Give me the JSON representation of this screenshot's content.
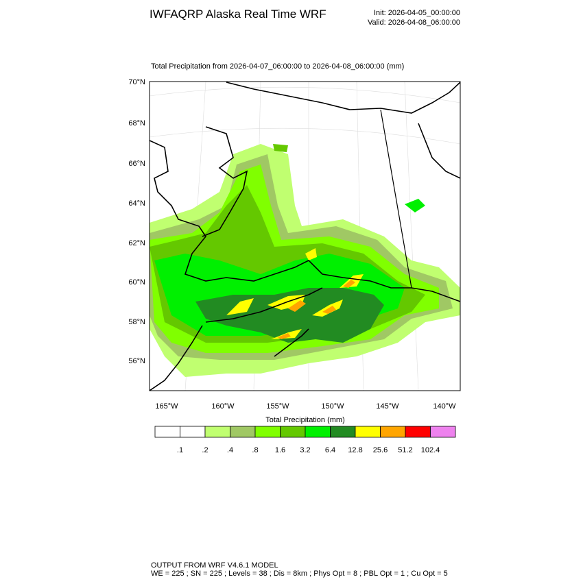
{
  "header": {
    "title": "IWFAQRP Alaska Real Time WRF",
    "init": "Init: 2026-04-05_00:00:00",
    "valid": "Valid: 2026-04-08_06:00:00",
    "subtitle": "Total Precipitation from 2026-04-07_06:00:00 to 2026-04-08_06:00:00   (mm)"
  },
  "map": {
    "lat_labels": [
      "70°N",
      "68°N",
      "66°N",
      "64°N",
      "62°N",
      "60°N",
      "58°N",
      "56°N"
    ],
    "lon_labels": [
      "165°W",
      "160°W",
      "155°W",
      "150°W",
      "145°W",
      "140°W"
    ]
  },
  "colorbar": {
    "title": "Total Precipitation  (mm)",
    "colors": [
      "#ffffff",
      "#ffffff",
      "#c0ff70",
      "#a0c864",
      "#80ff00",
      "#64c800",
      "#00f000",
      "#228b22",
      "#ffff00",
      "#ffa500",
      "#ff0000",
      "#ee82ee"
    ],
    "levels": [
      {
        "value": 0.1,
        "label": ".1"
      },
      {
        "value": 0.2,
        "label": ".2"
      },
      {
        "value": 0.4,
        "label": ".4"
      },
      {
        "value": 0.8,
        "label": ".8"
      },
      1.6,
      3.2,
      6.4,
      12.8,
      25.6,
      51.2,
      102.4
    ]
  },
  "footer": {
    "line1": "OUTPUT FROM WRF V4.6.1 MODEL",
    "line2": "WE = 225 ; SN = 225 ; Levels = 38 ; Dis = 8km ; Phys Opt = 8 ; PBL Opt = 1 ; Cu Opt = 5"
  }
}
